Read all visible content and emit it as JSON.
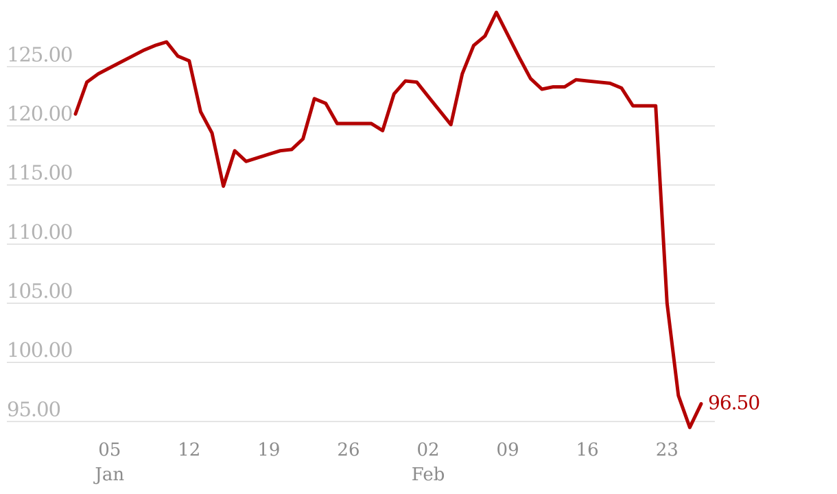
{
  "chart_data": {
    "type": "line",
    "title": "",
    "xlabel": "",
    "ylabel": "",
    "ylim": [
      94.5,
      129.6
    ],
    "grid": true,
    "legend": "none",
    "colors": {
      "line": "#b30000",
      "grid": "#dcdcdc",
      "ytick": "#b3b3b3",
      "xtick": "#8c8c8c"
    },
    "yticks": [
      95,
      100,
      105,
      110,
      115,
      120,
      125
    ],
    "ytick_labels": [
      "95.00",
      "100.00",
      "105.00",
      "110.00",
      "115.00",
      "120.00",
      "125.00"
    ],
    "xticks": [
      {
        "date": "2025-01-05",
        "label": "05",
        "month": "Jan"
      },
      {
        "date": "2025-01-12",
        "label": "12",
        "month": ""
      },
      {
        "date": "2025-01-19",
        "label": "19",
        "month": ""
      },
      {
        "date": "2025-01-26",
        "label": "26",
        "month": ""
      },
      {
        "date": "2025-02-02",
        "label": "02",
        "month": "Feb"
      },
      {
        "date": "2025-02-09",
        "label": "09",
        "month": ""
      },
      {
        "date": "2025-02-16",
        "label": "16",
        "month": ""
      },
      {
        "date": "2025-02-23",
        "label": "23",
        "month": ""
      }
    ],
    "end_label": "96.50",
    "series": [
      {
        "x": [
          "2025-01-02",
          "2025-01-03",
          "2025-01-04",
          "2025-01-05",
          "2025-01-06",
          "2025-01-07",
          "2025-01-08",
          "2025-01-09",
          "2025-01-10",
          "2025-01-11",
          "2025-01-12",
          "2025-01-13",
          "2025-01-14",
          "2025-01-15",
          "2025-01-16",
          "2025-01-17",
          "2025-01-18",
          "2025-01-19",
          "2025-01-20",
          "2025-01-21",
          "2025-01-22",
          "2025-01-23",
          "2025-01-24",
          "2025-01-25",
          "2025-01-26",
          "2025-01-27",
          "2025-01-28",
          "2025-01-29",
          "2025-01-30",
          "2025-01-31",
          "2025-02-01",
          "2025-02-02",
          "2025-02-03",
          "2025-02-04",
          "2025-02-05",
          "2025-02-06",
          "2025-02-07",
          "2025-02-08",
          "2025-02-09",
          "2025-02-10",
          "2025-02-11",
          "2025-02-12",
          "2025-02-13",
          "2025-02-14",
          "2025-02-15",
          "2025-02-16",
          "2025-02-17",
          "2025-02-18",
          "2025-02-19",
          "2025-02-20",
          "2025-02-21",
          "2025-02-22",
          "2025-02-23",
          "2025-02-24",
          "2025-02-25",
          "2025-02-26"
        ],
        "values": [
          121.0,
          123.7,
          124.4,
          124.9,
          125.4,
          125.9,
          126.4,
          126.8,
          127.1,
          125.9,
          125.5,
          121.2,
          119.4,
          114.9,
          117.9,
          117.0,
          117.3,
          117.6,
          117.9,
          118.0,
          118.9,
          122.3,
          121.9,
          120.2,
          120.2,
          120.2,
          120.2,
          119.6,
          122.7,
          123.8,
          123.7,
          122.5,
          121.3,
          120.1,
          124.4,
          126.8,
          127.6,
          129.6,
          127.7,
          125.8,
          124.0,
          123.1,
          123.3,
          123.3,
          123.9,
          123.8,
          123.7,
          123.6,
          123.2,
          121.7,
          121.7,
          121.7,
          105.0,
          97.2,
          94.5,
          96.5
        ]
      }
    ]
  }
}
